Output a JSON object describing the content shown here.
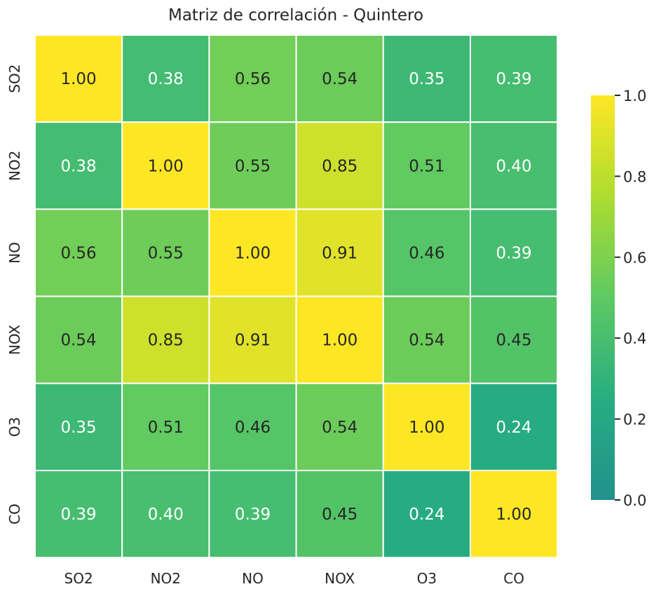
{
  "chart_data": {
    "type": "heatmap",
    "title": "Matriz de correlación - Quintero",
    "xlabel": "",
    "ylabel": "",
    "x_categories": [
      "SO2",
      "NO2",
      "NO",
      "NOX",
      "O3",
      "CO"
    ],
    "y_categories": [
      "SO2",
      "NO2",
      "NO",
      "NOX",
      "O3",
      "CO"
    ],
    "values": [
      [
        1.0,
        0.38,
        0.56,
        0.54,
        0.35,
        0.39
      ],
      [
        0.38,
        1.0,
        0.55,
        0.85,
        0.51,
        0.4
      ],
      [
        0.56,
        0.55,
        1.0,
        0.91,
        0.46,
        0.39
      ],
      [
        0.54,
        0.85,
        0.91,
        1.0,
        0.54,
        0.45
      ],
      [
        0.35,
        0.51,
        0.46,
        0.54,
        1.0,
        0.24
      ],
      [
        0.39,
        0.4,
        0.39,
        0.45,
        0.24,
        1.0
      ]
    ],
    "value_format": "0.00",
    "colorbar": {
      "range": [
        0.0,
        1.0
      ],
      "ticks": [
        "0.0",
        "0.2",
        "0.4",
        "0.6",
        "0.8",
        "1.0"
      ],
      "colormap_stops": [
        "#21918c",
        "#27ad81",
        "#5ec962",
        "#addc30",
        "#fde725"
      ]
    },
    "grid_line_color": "#ffffff",
    "text_colors": {
      "dark": "#262626",
      "light": "#ffffff"
    }
  }
}
